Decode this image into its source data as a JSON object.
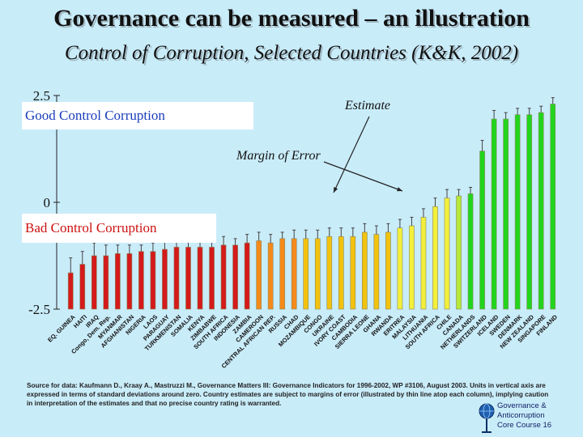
{
  "slide": {
    "title": "Governance can be measured – an illustration",
    "subtitle": "Control of Corruption, Selected Countries (K&K, 2002)",
    "good_label": "Good Control Corruption",
    "bad_label": "Bad Control Corruption",
    "estimate_label": "Estimate",
    "margin_label": "Margin of Error",
    "source": "Source for data: Kaufmann D., Kraay A., Mastruzzi M., Governance Matters III: Governance Indicators for 1996-2002, WP #3106, August 2003. Units in vertical axis are expressed in terms of standard deviations around zero. Country estimates are subject to margins of error (illustrated by thin line atop each column), implying caution in interpretation of the estimates and that no precise country rating is warranted.",
    "footer": [
      "Governance &",
      "Anticorruption",
      "Core Course  16"
    ]
  },
  "chart_data": {
    "type": "bar",
    "ylim": [
      -2.5,
      2.5
    ],
    "yticks": [
      "2.5",
      "0",
      "-2.5"
    ],
    "categories": [
      "EQ. GUINEA",
      "HAITI",
      "IRAQ",
      "Congo, Dem. Rep.",
      "MYANMAR",
      "AFGHANISTAN",
      "NIGERIA",
      "LAOS",
      "PARAGUAY",
      "TURKMENISTAN",
      "SOMALIA",
      "KENYA",
      "ZIMBABWE",
      "SOUTH AFRICA",
      "INDONESIA",
      "ZAMBIA",
      "CAMEROON",
      "CENTRAL AFRICAN REP.",
      "RUSSIA",
      "CHAD",
      "MOZAMBIQUE",
      "CONGO",
      "UKRAINE",
      "IVORY COAST",
      "CAMBODIA",
      "SIERRA LEONE",
      "GHANA",
      "RWANDA",
      "ERITREA",
      "MALAYSIA",
      "LITHUANIA",
      "SOUTH AFRICA",
      "CHILE",
      "CANADA",
      "NETHERLANDS",
      "SWITZERLAND",
      "ICELAND",
      "SWEDEN",
      "DENMARK",
      "NEW ZEALAND",
      "SINGAPORE",
      "FINLAND"
    ],
    "values": [
      -1.65,
      -1.45,
      -1.25,
      -1.25,
      -1.2,
      -1.2,
      -1.15,
      -1.15,
      -1.1,
      -1.05,
      -1.05,
      -1.05,
      -1.05,
      -1.0,
      -1.0,
      -0.95,
      -0.9,
      -0.95,
      -0.85,
      -0.85,
      -0.85,
      -0.85,
      -0.8,
      -0.8,
      -0.8,
      -0.7,
      -0.75,
      -0.7,
      -0.6,
      -0.55,
      -0.35,
      -0.1,
      0.1,
      0.15,
      0.2,
      1.2,
      1.95,
      1.95,
      2.05,
      2.05,
      2.1,
      2.3
    ],
    "errors": [
      0.35,
      0.3,
      0.3,
      0.25,
      0.2,
      0.2,
      0.15,
      0.2,
      0.25,
      0.2,
      0.2,
      0.15,
      0.2,
      0.2,
      0.15,
      0.2,
      0.2,
      0.2,
      0.15,
      0.2,
      0.2,
      0.2,
      0.2,
      0.2,
      0.2,
      0.2,
      0.2,
      0.2,
      0.2,
      0.2,
      0.2,
      0.2,
      0.2,
      0.15,
      0.15,
      0.25,
      0.2,
      0.15,
      0.15,
      0.15,
      0.15,
      0.15
    ]
  }
}
